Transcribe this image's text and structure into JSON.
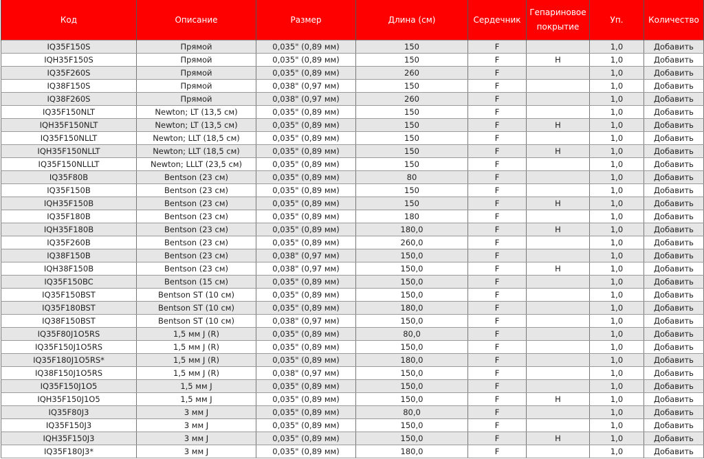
{
  "table": {
    "headers": [
      "Код",
      "Описание",
      "Размер",
      "Длина (см)",
      "Сердечник",
      "Гепариновое покрытие",
      "Уп.",
      "Количество"
    ],
    "add_label": "Добавить",
    "header_color": "#ff0000",
    "rows": [
      [
        "IQ35F150S",
        "Прямой",
        "0,035\" (0,89 мм)",
        "150",
        "F",
        "",
        "1,0"
      ],
      [
        "IQH35F150S",
        "Прямой",
        "0,035\" (0,89 мм)",
        "150",
        "F",
        "H",
        "1,0"
      ],
      [
        "IQ35F260S",
        "Прямой",
        "0,035\" (0,89 мм)",
        "260",
        "F",
        "",
        "1,0"
      ],
      [
        "IQ38F150S",
        "Прямой",
        "0,038\" (0,97 мм)",
        "150",
        "F",
        "",
        "1,0"
      ],
      [
        "IQ38F260S",
        "Прямой",
        "0,038\" (0,97 мм)",
        "260",
        "F",
        "",
        "1,0"
      ],
      [
        "IQ35F150NLT",
        "Newton; LT (13,5 см)",
        "0,035\" (0,89 мм)",
        "150",
        "F",
        "",
        "1,0"
      ],
      [
        "IQH35F150NLT",
        "Newton; LT (13,5 см)",
        "0,035\" (0,89 мм)",
        "150",
        "F",
        "H",
        "1,0"
      ],
      [
        "IQ35F150NLLT",
        "Newton; LLT (18,5 см)",
        "0,035\" (0,89 мм)",
        "150",
        "F",
        "",
        "1,0"
      ],
      [
        "IQH35F150NLLT",
        "Newton; LLT (18,5 см)",
        "0,035\" (0,89 мм)",
        "150",
        "F",
        "H",
        "1,0"
      ],
      [
        "IQ35F150NLLLT",
        "Newton; LLLT (23,5 см)",
        "0,035\" (0,89 мм)",
        "150",
        "F",
        "",
        "1,0"
      ],
      [
        "IQ35F80B",
        "Bentson (23 см)",
        "0,035\" (0,89 мм)",
        "80",
        "F",
        "",
        "1,0"
      ],
      [
        "IQ35F150B",
        "Bentson (23 см)",
        "0,035\" (0,89 мм)",
        "150",
        "F",
        "",
        "1,0"
      ],
      [
        "IQH35F150B",
        "Bentson (23 см)",
        "0,035\" (0,89 мм)",
        "150",
        "F",
        "H",
        "1,0"
      ],
      [
        "IQ35F180B",
        "Bentson (23 см)",
        "0,035\" (0,89 мм)",
        "180",
        "F",
        "",
        "1,0"
      ],
      [
        "IQH35F180B",
        "Bentson (23 см)",
        "0,035\" (0,89 мм)",
        "180,0",
        "F",
        "H",
        "1,0"
      ],
      [
        "IQ35F260B",
        "Bentson (23 см)",
        "0,035\" (0,89 мм)",
        "260,0",
        "F",
        "",
        "1,0"
      ],
      [
        "IQ38F150B",
        "Bentson (23 см)",
        "0,038\" (0,97 мм)",
        "150,0",
        "F",
        "",
        "1,0"
      ],
      [
        "IQH38F150B",
        "Bentson (23 см)",
        "0,038\" (0,97 мм)",
        "150,0",
        "F",
        "H",
        "1,0"
      ],
      [
        "IQ35F150BC",
        "Bentson (15 см)",
        "0,035\" (0,89 мм)",
        "150,0",
        "F",
        "",
        "1,0"
      ],
      [
        "IQ35F150BST",
        "Bentson ST (10 см)",
        "0,035\" (0,89 мм)",
        "150,0",
        "F",
        "",
        "1,0"
      ],
      [
        "IQ35F180BST",
        "Bentson ST (10 см)",
        "0,035\" (0,89 мм)",
        "180,0",
        "F",
        "",
        "1,0"
      ],
      [
        "IQ38F150BST",
        "Bentson ST (10 см)",
        "0,038\" (0,97 мм)",
        "150,0",
        "F",
        "",
        "1,0"
      ],
      [
        "IQ35F80J1O5RS",
        "1,5 мм J (R)",
        "0,035\" (0,89 мм)",
        "80,0",
        "F",
        "",
        "1,0"
      ],
      [
        "IQ35F150J1O5RS",
        "1,5 мм J (R)",
        "0,035\" (0,89 мм)",
        "150,0",
        "F",
        "",
        "1,0"
      ],
      [
        "IQ35F180J1O5RS*",
        "1,5 мм J (R)",
        "0,035\" (0,89 мм)",
        "180,0",
        "F",
        "",
        "1,0"
      ],
      [
        "IQ38F150J1O5RS",
        "1,5 мм J (R)",
        "0,038\" (0,97 мм)",
        "150,0",
        "F",
        "",
        "1,0"
      ],
      [
        "IQ35F150J1O5",
        "1,5 мм J",
        "0,035\" (0,89 мм)",
        "150,0",
        "F",
        "",
        "1,0"
      ],
      [
        "IQH35F150J1O5",
        "1,5 мм J",
        "0,035\" (0,89 мм)",
        "150,0",
        "F",
        "H",
        "1,0"
      ],
      [
        "IQ35F80J3",
        "3 мм J",
        "0,035\" (0,89 мм)",
        "80,0",
        "F",
        "",
        "1,0"
      ],
      [
        "IQ35F150J3",
        "3 мм J",
        "0,035\" (0,89 мм)",
        "150,0",
        "F",
        "",
        "1,0"
      ],
      [
        "IQH35F150J3",
        "3 мм J",
        "0,035\" (0,89 мм)",
        "150,0",
        "F",
        "H",
        "1,0"
      ],
      [
        "IQ35F180J3*",
        "3 мм J",
        "0,035\" (0,89 мм)",
        "180,0",
        "F",
        "",
        "1,0"
      ]
    ]
  }
}
